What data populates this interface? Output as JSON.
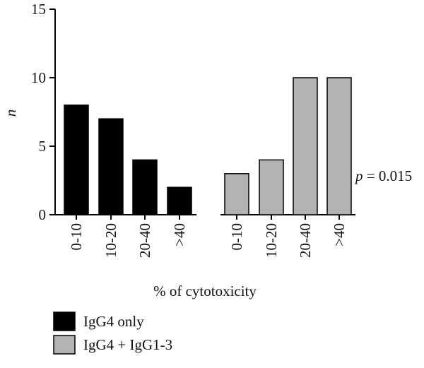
{
  "chart_data": {
    "type": "bar",
    "ylabel": "n",
    "xlabel": "% of cytotoxicity",
    "ylim": [
      0,
      15
    ],
    "yticks": [
      0,
      5,
      10,
      15
    ],
    "series": [
      {
        "name": "IgG4 only",
        "color": "#000000",
        "categories": [
          "0-10",
          "10-20",
          "20-40",
          ">40"
        ],
        "values": [
          8,
          7,
          4,
          2
        ]
      },
      {
        "name": "IgG4 + IgG1-3",
        "color": "#b3b3b3",
        "categories": [
          "0-10",
          "10-20",
          "20-40",
          ">40"
        ],
        "values": [
          3,
          4,
          10,
          10
        ]
      }
    ],
    "annotation": {
      "italic_part": "p",
      "rest": " = 0.015"
    },
    "legend_position": "bottom-left"
  }
}
